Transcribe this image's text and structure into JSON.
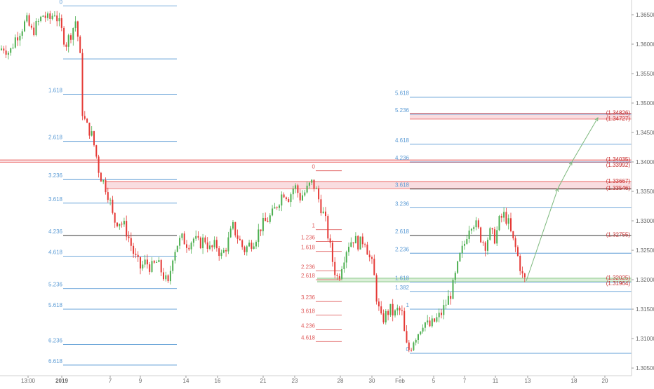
{
  "chart_data": {
    "type": "candlestick",
    "title": "",
    "xlabel": "",
    "ylabel": "",
    "ylim": [
      1.3037,
      1.3675
    ],
    "colors": {
      "up": "#4caf50",
      "down": "#e53935",
      "fib_blue": "#5b9bd5",
      "fib_red": "#e06060",
      "zone_red": "#f8d7da",
      "zone_green": "#d6ecd2",
      "projection": "#7cb87c",
      "axis_text": "#666666"
    },
    "price_axis": {
      "ticks": [
        "1.36500",
        "1.36000",
        "1.35500",
        "1.35000",
        "1.34500",
        "1.34000",
        "1.33500",
        "1.33000",
        "1.32500",
        "1.32000",
        "1.31500",
        "1.31000",
        "1.30500"
      ]
    },
    "time_axis": {
      "ticks": [
        {
          "label": "13:00",
          "bold": false
        },
        {
          "label": "2019",
          "bold": true
        },
        {
          "label": "7",
          "bold": false
        },
        {
          "label": "9",
          "bold": false
        },
        {
          "label": "14",
          "bold": false
        },
        {
          "label": "16",
          "bold": false
        },
        {
          "label": "21",
          "bold": false
        },
        {
          "label": "23",
          "bold": false
        },
        {
          "label": "28",
          "bold": false
        },
        {
          "label": "30",
          "bold": false
        },
        {
          "label": "Feb",
          "bold": false
        },
        {
          "label": "5",
          "bold": false
        },
        {
          "label": "7",
          "bold": false
        },
        {
          "label": "11",
          "bold": false
        },
        {
          "label": "13",
          "bold": false
        },
        {
          "label": "18",
          "bold": false
        },
        {
          "label": "20",
          "bold": false
        }
      ]
    },
    "price_path": [
      [
        0,
        1.359
      ],
      [
        8,
        1.3595
      ],
      [
        16,
        1.3585
      ],
      [
        24,
        1.361
      ],
      [
        32,
        1.3625
      ],
      [
        40,
        1.364
      ],
      [
        48,
        1.362
      ],
      [
        56,
        1.3635
      ],
      [
        64,
        1.365
      ],
      [
        72,
        1.364
      ],
      [
        80,
        1.3655
      ],
      [
        88,
        1.363
      ],
      [
        96,
        1.36
      ],
      [
        104,
        1.362
      ],
      [
        110,
        1.364
      ],
      [
        116,
        1.359
      ],
      [
        120,
        1.348
      ],
      [
        126,
        1.346
      ],
      [
        132,
        1.345
      ],
      [
        138,
        1.342
      ],
      [
        144,
        1.338
      ],
      [
        152,
        1.336
      ],
      [
        158,
        1.334
      ],
      [
        164,
        1.33
      ],
      [
        172,
        1.33
      ],
      [
        180,
        1.329
      ],
      [
        186,
        1.327
      ],
      [
        194,
        1.324
      ],
      [
        202,
        1.322
      ],
      [
        210,
        1.323
      ],
      [
        218,
        1.322
      ],
      [
        226,
        1.323
      ],
      [
        234,
        1.321
      ],
      [
        242,
        1.319
      ],
      [
        248,
        1.324
      ],
      [
        254,
        1.326
      ],
      [
        262,
        1.327
      ],
      [
        270,
        1.326
      ],
      [
        278,
        1.327
      ],
      [
        286,
        1.326
      ],
      [
        294,
        1.327
      ],
      [
        302,
        1.325
      ],
      [
        310,
        1.326
      ],
      [
        318,
        1.324
      ],
      [
        326,
        1.326
      ],
      [
        334,
        1.329
      ],
      [
        342,
        1.327
      ],
      [
        350,
        1.325
      ],
      [
        358,
        1.326
      ],
      [
        366,
        1.327
      ],
      [
        374,
        1.329
      ],
      [
        382,
        1.33
      ],
      [
        390,
        1.331
      ],
      [
        398,
        1.333
      ],
      [
        406,
        1.335
      ],
      [
        414,
        1.334
      ],
      [
        422,
        1.336
      ],
      [
        430,
        1.334
      ],
      [
        438,
        1.335
      ],
      [
        446,
        1.3365
      ],
      [
        452,
        1.3355
      ],
      [
        458,
        1.333
      ],
      [
        466,
        1.33
      ],
      [
        472,
        1.326
      ],
      [
        478,
        1.322
      ],
      [
        484,
        1.32
      ],
      [
        490,
        1.323
      ],
      [
        498,
        1.326
      ],
      [
        506,
        1.327
      ],
      [
        514,
        1.326
      ],
      [
        522,
        1.327
      ],
      [
        528,
        1.324
      ],
      [
        534,
        1.322
      ],
      [
        540,
        1.316
      ],
      [
        546,
        1.313
      ],
      [
        552,
        1.314
      ],
      [
        558,
        1.315
      ],
      [
        564,
        1.314
      ],
      [
        570,
        1.315
      ],
      [
        576,
        1.314
      ],
      [
        580,
        1.309
      ],
      [
        586,
        1.308
      ],
      [
        592,
        1.31
      ],
      [
        598,
        1.311
      ],
      [
        606,
        1.313
      ],
      [
        614,
        1.312
      ],
      [
        622,
        1.313
      ],
      [
        630,
        1.314
      ],
      [
        638,
        1.316
      ],
      [
        646,
        1.318
      ],
      [
        652,
        1.321
      ],
      [
        658,
        1.324
      ],
      [
        664,
        1.326
      ],
      [
        670,
        1.329
      ],
      [
        676,
        1.33
      ],
      [
        682,
        1.329
      ],
      [
        688,
        1.327
      ],
      [
        694,
        1.326
      ],
      [
        700,
        1.328
      ],
      [
        708,
        1.327
      ],
      [
        714,
        1.33
      ],
      [
        720,
        1.331
      ],
      [
        726,
        1.33
      ],
      [
        732,
        1.327
      ],
      [
        738,
        1.325
      ],
      [
        744,
        1.322
      ],
      [
        748,
        1.32
      ]
    ],
    "fib_series": [
      {
        "name": "fib-left",
        "color": "#5b9bd5",
        "x_range": [
          90,
          252
        ],
        "levels": [
          {
            "label": "0",
            "y": 1.3665
          },
          {
            "label": "",
            "y": 1.3575
          },
          {
            "label": "1.618",
            "y": 1.3515
          },
          {
            "label": "2.618",
            "y": 1.3435
          },
          {
            "label": "3.236",
            "y": 1.337
          },
          {
            "label": "3.618",
            "y": 1.333
          },
          {
            "label": "4.236",
            "y": 1.3275
          },
          {
            "label": "4.618",
            "y": 1.324
          },
          {
            "label": "5.236",
            "y": 1.3185
          },
          {
            "label": "5.618",
            "y": 1.315
          },
          {
            "label": "6.236",
            "y": 1.309
          },
          {
            "label": "6.618",
            "y": 1.3055
          }
        ]
      },
      {
        "name": "fib-middle",
        "color": "#e06060",
        "x_range": [
          450,
          487
        ],
        "levels": [
          {
            "label": "0",
            "y": 1.3385
          },
          {
            "label": "1",
            "y": 1.3285
          },
          {
            "label": "1.236",
            "y": 1.3265
          },
          {
            "label": "1.618",
            "y": 1.3248
          },
          {
            "label": "2.236",
            "y": 1.3215
          },
          {
            "label": "2.618",
            "y": 1.32
          },
          {
            "label": "3.236",
            "y": 1.3163
          },
          {
            "label": "3.618",
            "y": 1.314
          },
          {
            "label": "4.236",
            "y": 1.3115
          },
          {
            "label": "4.618",
            "y": 1.3095
          }
        ]
      },
      {
        "name": "fib-right",
        "color": "#5b9bd5",
        "x_range": [
          584,
          900
        ],
        "levels": [
          {
            "label": "5.618",
            "y": 1.351
          },
          {
            "label": "5.236",
            "y": 1.3481
          },
          {
            "label": "4.618",
            "y": 1.343
          },
          {
            "label": "4.236",
            "y": 1.34
          },
          {
            "label": "3.618",
            "y": 1.3354
          },
          {
            "label": "3.236",
            "y": 1.3322
          },
          {
            "label": "2.618",
            "y": 1.3275
          },
          {
            "label": "2.236",
            "y": 1.3245
          },
          {
            "label": "1.618",
            "y": 1.3196
          },
          {
            "label": "1.382",
            "y": 1.318
          },
          {
            "label": "1",
            "y": 1.315
          },
          {
            "label": "0",
            "y": 1.3075
          }
        ]
      }
    ],
    "zones": [
      {
        "name": "zone-134826",
        "color": "#f8d7da",
        "y_top": 1.34826,
        "y_bottom": 1.34727,
        "x_start": 584
      },
      {
        "name": "zone-134035",
        "color": "#f8d7da",
        "y_top": 1.34035,
        "y_bottom": 1.33992,
        "x_start": 0
      },
      {
        "name": "zone-133667",
        "color": "#f8d7da",
        "y_top": 1.33667,
        "y_bottom": 1.33546,
        "x_start": 150
      },
      {
        "name": "zone-132025",
        "color": "#d6ecd2",
        "y_top": 1.32025,
        "y_bottom": 1.31964,
        "x_start": 452
      }
    ],
    "key_levels": [
      {
        "label": "(1.34826)",
        "y": 1.34826
      },
      {
        "label": "(1.34727)",
        "y": 1.34727
      },
      {
        "label": "(1.34035)",
        "y": 1.34035
      },
      {
        "label": "(1.33992)",
        "y": 1.33992
      },
      {
        "label": "(1.33667)",
        "y": 1.33667
      },
      {
        "label": "(1.33546)",
        "y": 1.33546
      },
      {
        "label": "(1.32755)",
        "y": 1.32755
      },
      {
        "label": "(1.32025)",
        "y": 1.32025
      },
      {
        "label": "(1.31964)",
        "y": 1.31964
      }
    ],
    "projection_path": [
      [
        750,
        1.3198
      ],
      [
        795,
        1.3355
      ],
      [
        815,
        1.34
      ],
      [
        852,
        1.3475
      ]
    ]
  }
}
